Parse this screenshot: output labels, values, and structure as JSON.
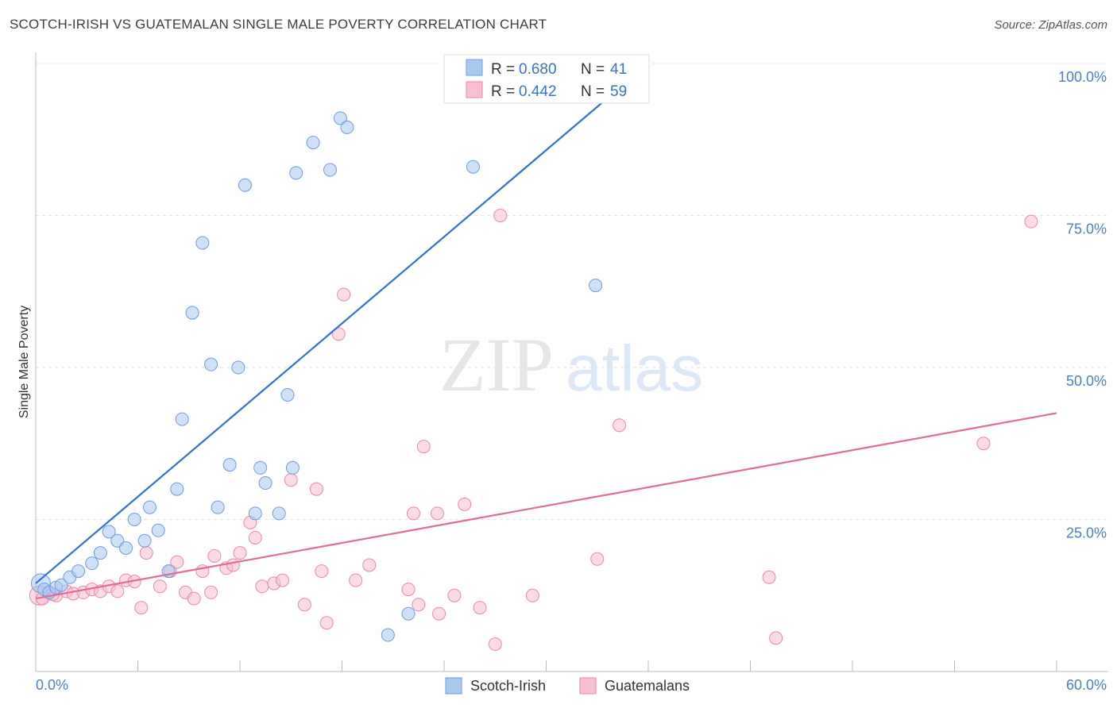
{
  "title": "SCOTCH-IRISH VS GUATEMALAN SINGLE MALE POVERTY CORRELATION CHART",
  "source": "Source: ZipAtlas.com",
  "watermark": {
    "zip": "ZIP",
    "atlas": "atlas"
  },
  "legend": {
    "rows": [
      {
        "r_label": "R =",
        "r_value": "0.680",
        "n_label": "N =",
        "n_value": "41",
        "color": "#a9c8f0",
        "stroke": "#6c9ee0"
      },
      {
        "r_label": "R =",
        "r_value": "0.442",
        "n_label": "N =",
        "n_value": "59",
        "color": "#f7bfd0",
        "stroke": "#e88aa8"
      }
    ]
  },
  "chart_data": {
    "type": "scatter",
    "title": "SCOTCH-IRISH VS GUATEMALAN SINGLE MALE POVERTY CORRELATION CHART",
    "xlabel": "",
    "ylabel": "Single Male Poverty",
    "xlim": [
      0,
      60
    ],
    "ylim": [
      0,
      100
    ],
    "x_tick_labels": [
      "0.0%",
      "60.0%"
    ],
    "y_tick_values": [
      25,
      50,
      75,
      100
    ],
    "y_tick_labels": [
      "25.0%",
      "50.0%",
      "75.0%",
      "100.0%"
    ],
    "series": [
      {
        "name": "Scotch-Irish",
        "color": "#a9c8f0",
        "stroke": "#6c9ee0",
        "line_color": "#2f72d0",
        "trend": {
          "x": [
            0,
            36
          ],
          "y": [
            14.5,
            100
          ]
        },
        "points": [
          [
            0.3,
            14.5
          ],
          [
            0.5,
            13.5
          ],
          [
            0.8,
            13.0
          ],
          [
            1.2,
            13.8
          ],
          [
            1.5,
            14.2
          ],
          [
            2.0,
            15.5
          ],
          [
            2.5,
            16.5
          ],
          [
            3.3,
            17.8
          ],
          [
            3.8,
            19.5
          ],
          [
            4.3,
            23.0
          ],
          [
            4.8,
            21.5
          ],
          [
            5.3,
            20.3
          ],
          [
            5.8,
            25.0
          ],
          [
            6.4,
            21.5
          ],
          [
            6.7,
            27.0
          ],
          [
            7.2,
            23.2
          ],
          [
            7.8,
            16.5
          ],
          [
            8.3,
            30.0
          ],
          [
            8.6,
            41.5
          ],
          [
            9.2,
            59.0
          ],
          [
            9.8,
            70.5
          ],
          [
            10.3,
            50.5
          ],
          [
            10.7,
            27.0
          ],
          [
            11.4,
            34.0
          ],
          [
            11.9,
            50.0
          ],
          [
            12.3,
            80.0
          ],
          [
            12.9,
            26.0
          ],
          [
            13.2,
            33.5
          ],
          [
            13.5,
            31.0
          ],
          [
            14.3,
            26.0
          ],
          [
            14.8,
            45.5
          ],
          [
            15.1,
            33.5
          ],
          [
            15.3,
            82.0
          ],
          [
            16.3,
            87.0
          ],
          [
            17.3,
            82.5
          ],
          [
            17.9,
            91.0
          ],
          [
            18.3,
            89.5
          ],
          [
            20.7,
            6.0
          ],
          [
            21.9,
            9.5
          ],
          [
            25.7,
            83.0
          ],
          [
            32.9,
            63.5
          ]
        ]
      },
      {
        "name": "Guatemalans",
        "color": "#f7bfd0",
        "stroke": "#e88aa8",
        "line_color": "#e46b95",
        "trend": {
          "x": [
            0,
            60
          ],
          "y": [
            12.0,
            42.5
          ]
        },
        "points": [
          [
            0.2,
            12.5
          ],
          [
            0.7,
            13.0
          ],
          [
            1.2,
            12.5
          ],
          [
            1.8,
            13.2
          ],
          [
            2.2,
            12.8
          ],
          [
            2.8,
            13.0
          ],
          [
            3.3,
            13.5
          ],
          [
            3.8,
            13.2
          ],
          [
            4.3,
            14.0
          ],
          [
            4.8,
            13.2
          ],
          [
            5.3,
            15.0
          ],
          [
            5.8,
            14.8
          ],
          [
            6.2,
            10.5
          ],
          [
            6.5,
            19.5
          ],
          [
            7.3,
            14.0
          ],
          [
            7.9,
            16.5
          ],
          [
            8.3,
            18.0
          ],
          [
            8.8,
            13.0
          ],
          [
            9.3,
            12.0
          ],
          [
            9.8,
            16.5
          ],
          [
            10.3,
            13.0
          ],
          [
            10.5,
            19.0
          ],
          [
            11.2,
            17.0
          ],
          [
            11.6,
            17.5
          ],
          [
            12.0,
            19.5
          ],
          [
            12.6,
            24.5
          ],
          [
            12.9,
            22.0
          ],
          [
            13.3,
            14.0
          ],
          [
            14.0,
            14.5
          ],
          [
            14.5,
            15.0
          ],
          [
            15.0,
            31.5
          ],
          [
            15.8,
            11.0
          ],
          [
            16.5,
            30.0
          ],
          [
            16.8,
            16.5
          ],
          [
            17.1,
            8.0
          ],
          [
            17.8,
            55.5
          ],
          [
            18.1,
            62.0
          ],
          [
            18.8,
            15.0
          ],
          [
            19.6,
            17.5
          ],
          [
            21.9,
            13.5
          ],
          [
            22.2,
            26.0
          ],
          [
            22.5,
            11.0
          ],
          [
            22.8,
            37.0
          ],
          [
            23.6,
            26.0
          ],
          [
            23.7,
            9.5
          ],
          [
            24.6,
            12.5
          ],
          [
            25.2,
            27.5
          ],
          [
            26.1,
            10.5
          ],
          [
            27.0,
            4.5
          ],
          [
            27.3,
            75.0
          ],
          [
            29.2,
            12.5
          ],
          [
            33.0,
            18.5
          ],
          [
            34.3,
            40.5
          ],
          [
            43.1,
            15.5
          ],
          [
            43.5,
            5.5
          ],
          [
            55.7,
            37.5
          ],
          [
            58.5,
            74.0
          ],
          [
            0.4,
            12.0
          ],
          [
            1.0,
            12.7
          ]
        ]
      }
    ]
  }
}
